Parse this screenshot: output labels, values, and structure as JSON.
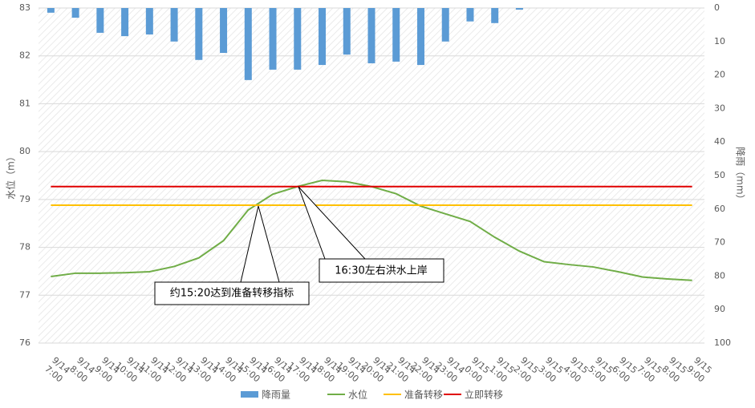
{
  "chart_data": {
    "type": "bar_line",
    "categories": [
      "9/14\n7:00",
      "9/14\n8:00",
      "9/14\n9:00",
      "9/14\n10:00",
      "9/14\n11:00",
      "9/14\n12:00",
      "9/14\n13:00",
      "9/14\n14:00",
      "9/14\n15:00",
      "9/14\n16:00",
      "9/14\n17:00",
      "9/14\n18:00",
      "9/14\n19:00",
      "9/14\n20:00",
      "9/14\n21:00",
      "9/14\n22:00",
      "9/14\n23:00",
      "9/15\n0:00",
      "9/15\n1:00",
      "9/15\n2:00",
      "9/15\n3:00",
      "9/15\n4:00",
      "9/15\n5:00",
      "9/15\n6:00",
      "9/15\n7:00",
      "9/15\n8:00",
      "9/15\n9:00"
    ],
    "series": [
      {
        "name": "降雨量",
        "type": "bar",
        "axis": "y2",
        "color": "#5b9bd5",
        "values": [
          1.4,
          2.9,
          7.4,
          8.4,
          7.9,
          10,
          15.5,
          13.4,
          21.5,
          18.4,
          18.4,
          17,
          13.9,
          16.5,
          16,
          17,
          10,
          4,
          4.5,
          0.5,
          0,
          0,
          0,
          0,
          0,
          0,
          0
        ]
      },
      {
        "name": "水位",
        "type": "line",
        "color": "#70ad47",
        "values": [
          77.39,
          77.46,
          77.46,
          77.47,
          77.49,
          77.6,
          77.78,
          78.14,
          78.78,
          79.11,
          79.27,
          79.4,
          79.37,
          79.27,
          79.12,
          78.86,
          78.7,
          78.54,
          78.21,
          77.92,
          77.7,
          77.64,
          77.59,
          77.49,
          77.38,
          77.34,
          77.31
        ]
      },
      {
        "name": "准备转移",
        "type": "line",
        "color": "#ffc000",
        "values": [
          78.88,
          78.88,
          78.88,
          78.88,
          78.88,
          78.88,
          78.88,
          78.88,
          78.88,
          78.88,
          78.88,
          78.88,
          78.88,
          78.88,
          78.88,
          78.88,
          78.88,
          78.88,
          78.88,
          78.88,
          78.88,
          78.88,
          78.88,
          78.88,
          78.88,
          78.88,
          78.88
        ]
      },
      {
        "name": "立即转移",
        "type": "line",
        "color": "#e00000",
        "values": [
          79.27,
          79.27,
          79.27,
          79.27,
          79.27,
          79.27,
          79.27,
          79.27,
          79.27,
          79.27,
          79.27,
          79.27,
          79.27,
          79.27,
          79.27,
          79.27,
          79.27,
          79.27,
          79.27,
          79.27,
          79.27,
          79.27,
          79.27,
          79.27,
          79.27,
          79.27,
          79.27
        ]
      }
    ],
    "ylabel": "水位（m）",
    "y2label": "降雨（mm）",
    "ylim": [
      76,
      83
    ],
    "yticks": [
      76,
      77,
      78,
      79,
      80,
      81,
      82,
      83
    ],
    "y2lim": [
      0,
      100
    ],
    "y2ticks": [
      0,
      10,
      20,
      30,
      40,
      50,
      60,
      70,
      80,
      90,
      100
    ],
    "y2_reversed": true,
    "grid": true,
    "legend": "bottom",
    "annotations": [
      "约15:20达到准备转移指标",
      "16:30左右洪水上岸"
    ]
  }
}
